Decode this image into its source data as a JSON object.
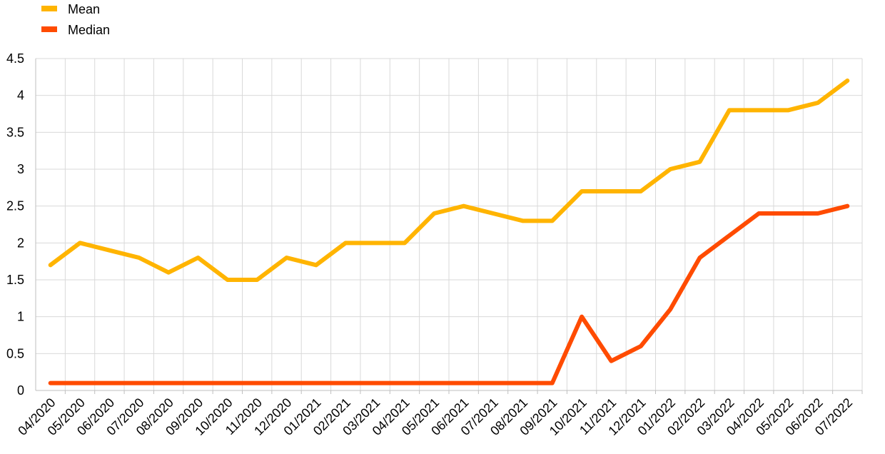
{
  "chart_data": {
    "type": "line",
    "title": "",
    "xlabel": "",
    "ylabel": "",
    "categories": [
      "04/2020",
      "05/2020",
      "06/2020",
      "07/2020",
      "08/2020",
      "09/2020",
      "10/2020",
      "11/2020",
      "12/2020",
      "01/2021",
      "02/2021",
      "03/2021",
      "04/2021",
      "05/2021",
      "06/2021",
      "07/2021",
      "08/2021",
      "09/2021",
      "10/2021",
      "11/2021",
      "12/2021",
      "01/2022",
      "02/2022",
      "03/2022",
      "04/2022",
      "05/2022",
      "06/2022",
      "07/2022"
    ],
    "ylim": [
      0,
      4.5
    ],
    "yticks": [
      "0",
      "0.5",
      "1",
      "1.5",
      "2",
      "2.5",
      "3",
      "3.5",
      "4",
      "4.5"
    ],
    "ytick_values": [
      0,
      0.5,
      1,
      1.5,
      2,
      2.5,
      3,
      3.5,
      4,
      4.5
    ],
    "grid": true,
    "legend_position": "top-left",
    "series": [
      {
        "name": "Mean",
        "color": "#FFB400",
        "values": [
          1.7,
          2.0,
          1.9,
          1.8,
          1.6,
          1.8,
          1.5,
          1.5,
          1.8,
          1.7,
          2.0,
          2.0,
          2.0,
          2.4,
          2.5,
          2.4,
          2.3,
          2.3,
          2.7,
          2.7,
          2.7,
          3.0,
          3.1,
          3.8,
          3.8,
          3.8,
          3.9,
          4.2
        ]
      },
      {
        "name": "Median",
        "color": "#FF4B00",
        "values": [
          0.1,
          0.1,
          0.1,
          0.1,
          0.1,
          0.1,
          0.1,
          0.1,
          0.1,
          0.1,
          0.1,
          0.1,
          0.1,
          0.1,
          0.1,
          0.1,
          0.1,
          0.1,
          1.0,
          0.4,
          0.6,
          1.1,
          1.8,
          2.1,
          2.4,
          2.4,
          2.4,
          2.5
        ]
      }
    ]
  }
}
